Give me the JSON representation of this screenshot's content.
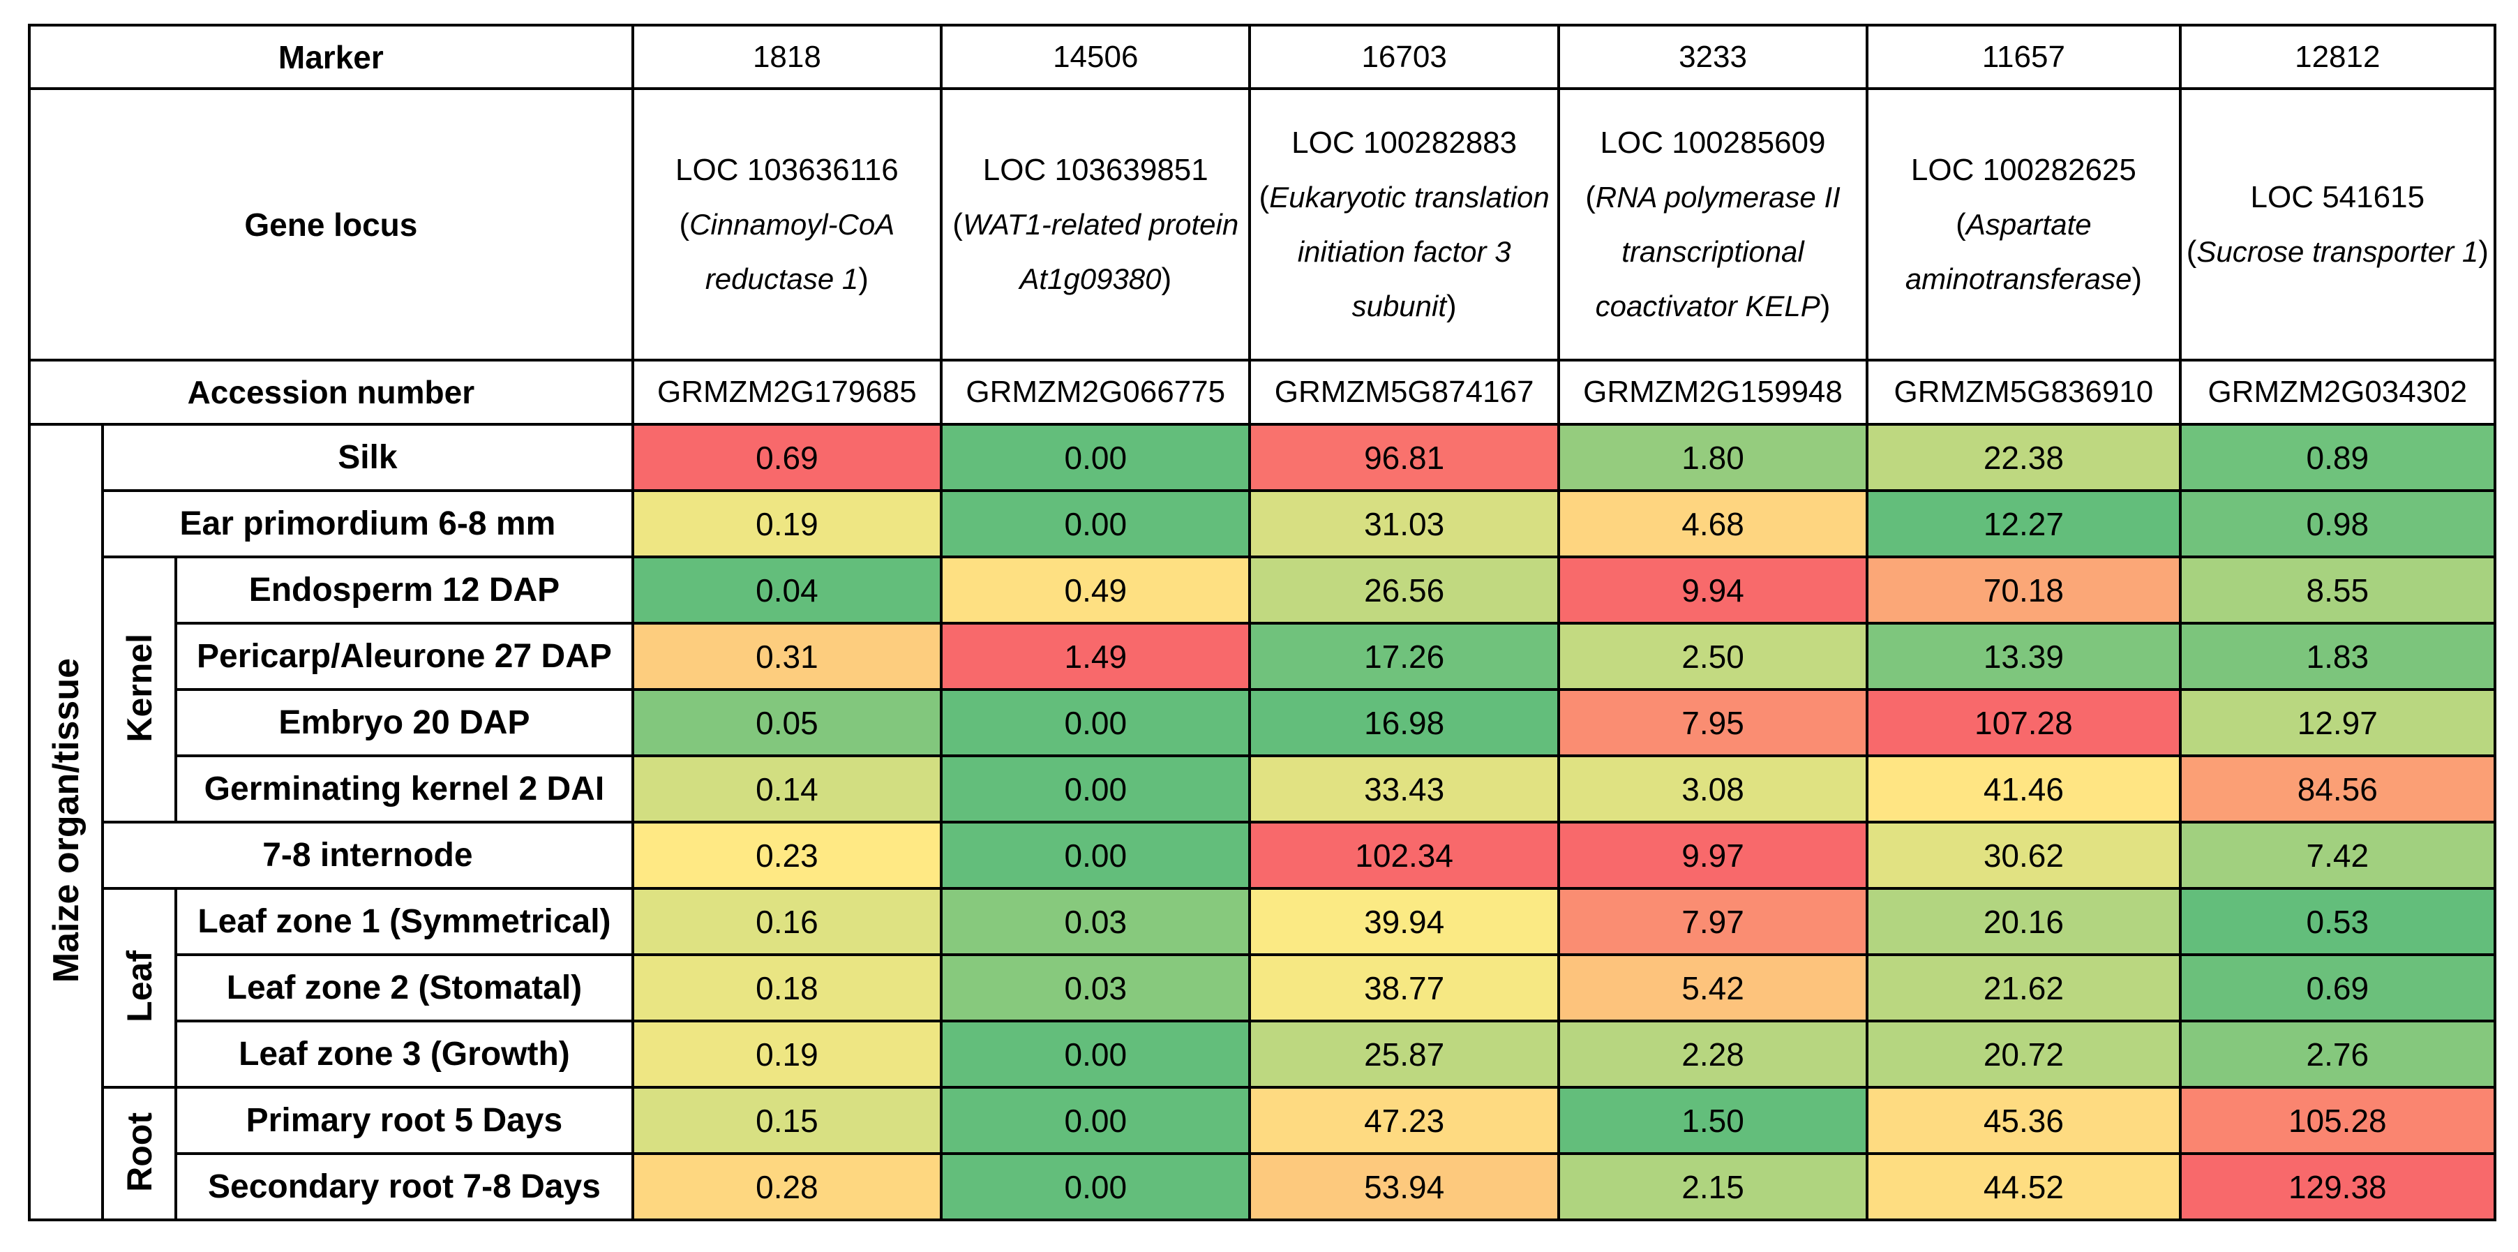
{
  "chart_data": {
    "type": "heatmap",
    "title": "",
    "header_labels": {
      "marker": "Marker",
      "gene_locus": "Gene locus",
      "accession": "Accession number"
    },
    "columns": [
      {
        "marker": "1818",
        "locus": "LOC 103636116",
        "desc_prefix": "(",
        "desc": "Cinnamoyl-CoA reductase 1",
        "desc_suffix": ")",
        "accession": "GRMZM2G179685"
      },
      {
        "marker": "14506",
        "locus": "LOC 103639851",
        "desc_prefix": "(",
        "desc": "WAT1-related protein At1g09380",
        "desc_suffix": ")",
        "accession": "GRMZM2G066775"
      },
      {
        "marker": "16703",
        "locus": "LOC 100282883",
        "desc_prefix": "(",
        "desc": "Eukaryotic translation initiation factor 3 subunit",
        "desc_suffix": ")",
        "accession": "GRMZM5G874167"
      },
      {
        "marker": "3233",
        "locus": "LOC 100285609",
        "desc_prefix": "(",
        "desc": "RNA polymerase II transcriptional coactivator KELP",
        "desc_suffix": ")",
        "accession": "GRMZM2G159948"
      },
      {
        "marker": "11657",
        "locus": "LOC 100282625",
        "desc_prefix": "(",
        "desc": "Aspartate aminotransferase",
        "desc_suffix": ")",
        "accession": "GRMZM5G836910"
      },
      {
        "marker": "12812",
        "locus": "LOC 541615",
        "desc_prefix": "(",
        "desc": "Sucrose transporter 1",
        "desc_suffix": ")",
        "accession": "GRMZM2G034302"
      }
    ],
    "row_axis_label": "Maize organ/tissue",
    "groups": [
      {
        "name": "",
        "rows": [
          "Silk",
          "Ear primordium 6-8 mm"
        ]
      },
      {
        "name": "Kernel",
        "rows": [
          "Endosperm 12 DAP",
          "Pericarp/Aleurone 27 DAP",
          "Embryo 20 DAP",
          "Germinating kernel 2 DAI"
        ]
      },
      {
        "name": "",
        "rows": [
          "7-8 internode"
        ]
      },
      {
        "name": "Leaf",
        "rows": [
          "Leaf zone 1 (Symmetrical)",
          "Leaf zone 2 (Stomatal)",
          "Leaf zone 3 (Growth)"
        ]
      },
      {
        "name": "Root",
        "rows": [
          "Primary root 5 Days",
          "Secondary root 7-8 Days"
        ]
      }
    ],
    "values": [
      [
        "0.69",
        "0.00",
        "96.81",
        "1.80",
        "22.38",
        "0.89"
      ],
      [
        "0.19",
        "0.00",
        "31.03",
        "4.68",
        "12.27",
        "0.98"
      ],
      [
        "0.04",
        "0.49",
        "26.56",
        "9.94",
        "70.18",
        "8.55"
      ],
      [
        "0.31",
        "1.49",
        "17.26",
        "2.50",
        "13.39",
        "1.83"
      ],
      [
        "0.05",
        "0.00",
        "16.98",
        "7.95",
        "107.28",
        "12.97"
      ],
      [
        "0.14",
        "0.00",
        "33.43",
        "3.08",
        "41.46",
        "84.56"
      ],
      [
        "0.23",
        "0.00",
        "102.34",
        "9.97",
        "30.62",
        "7.42"
      ],
      [
        "0.16",
        "0.03",
        "39.94",
        "7.97",
        "20.16",
        "0.53"
      ],
      [
        "0.18",
        "0.03",
        "38.77",
        "5.42",
        "21.62",
        "0.69"
      ],
      [
        "0.19",
        "0.00",
        "25.87",
        "2.28",
        "20.72",
        "2.76"
      ],
      [
        "0.15",
        "0.00",
        "47.23",
        "1.50",
        "45.36",
        "105.28"
      ],
      [
        "0.28",
        "0.00",
        "53.94",
        "2.15",
        "44.52",
        "129.38"
      ]
    ],
    "color_scale": {
      "low": "#63be7b",
      "mid": "#ffeb84",
      "high": "#f8696b",
      "scope": "per-column"
    }
  }
}
